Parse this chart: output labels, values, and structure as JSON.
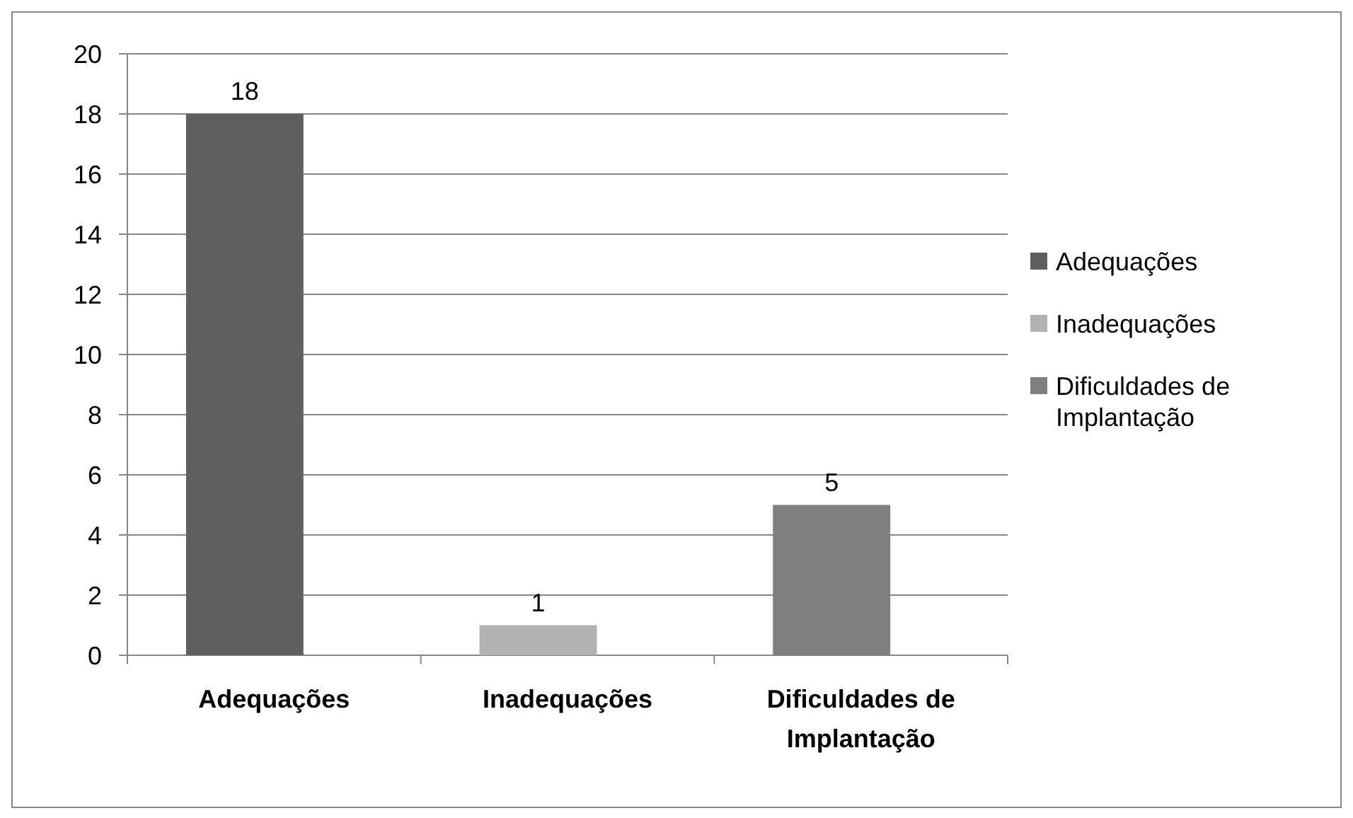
{
  "chart_data": {
    "type": "bar",
    "categories": [
      "Adequações",
      "Inadequações",
      "Dificuldades de Implantação"
    ],
    "series": [
      {
        "name": "Adequações",
        "color": "#5f5f5f",
        "values": [
          18,
          null,
          null
        ]
      },
      {
        "name": "Inadequações",
        "color": "#b2b2b2",
        "values": [
          null,
          1,
          null
        ]
      },
      {
        "name": "Dificuldades de Implantação",
        "color": "#7f7f7f",
        "values": [
          null,
          null,
          5
        ]
      }
    ],
    "ylim": [
      0,
      20
    ],
    "yticks": [
      0,
      2,
      4,
      6,
      8,
      10,
      12,
      14,
      16,
      18,
      20
    ],
    "grid": "y",
    "legend": "right",
    "data_labels": true
  }
}
